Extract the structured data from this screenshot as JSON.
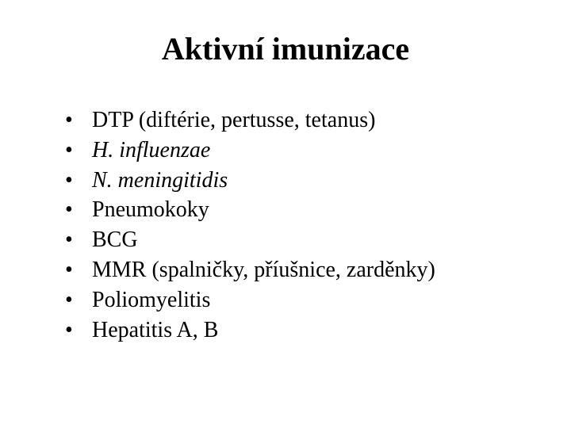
{
  "slide": {
    "title": "Aktivní imunizace",
    "items": [
      {
        "text": "DTP (diftérie, pertusse, tetanus)",
        "italic": false
      },
      {
        "text": "H. influenzae",
        "italic": true
      },
      {
        "text": "N. meningitidis",
        "italic": true
      },
      {
        "text": "Pneumokoky",
        "italic": false
      },
      {
        "text": "BCG",
        "italic": false
      },
      {
        "text": "MMR (spalničky, příušnice, zarděnky)",
        "italic": false
      },
      {
        "text": "Poliomyelitis",
        "italic": false
      },
      {
        "text": "Hepatitis A, B",
        "italic": false
      }
    ]
  },
  "colors": {
    "background": "#ffffff",
    "text": "#000000"
  },
  "typography": {
    "title_fontsize": 40,
    "title_weight": "bold",
    "item_fontsize": 28,
    "font_family": "Times New Roman"
  }
}
